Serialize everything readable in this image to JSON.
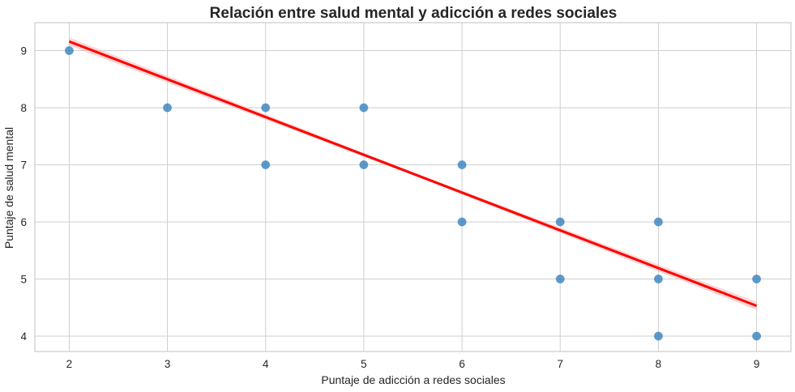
{
  "chart_data": {
    "type": "scatter",
    "title": "Relación entre salud mental y adicción a redes sociales",
    "xlabel": "Puntaje de adicción a redes sociales",
    "ylabel": "Puntaje de salud mental",
    "xlim": [
      1.65,
      9.35
    ],
    "ylim": [
      3.73,
      9.49
    ],
    "xticks": [
      2,
      3,
      4,
      5,
      6,
      7,
      8,
      9
    ],
    "yticks": [
      4,
      5,
      6,
      7,
      8,
      9
    ],
    "grid": true,
    "points": [
      {
        "x": 2,
        "y": 9
      },
      {
        "x": 3,
        "y": 8
      },
      {
        "x": 4,
        "y": 8
      },
      {
        "x": 4,
        "y": 7
      },
      {
        "x": 5,
        "y": 8
      },
      {
        "x": 5,
        "y": 7
      },
      {
        "x": 6,
        "y": 7
      },
      {
        "x": 6,
        "y": 6
      },
      {
        "x": 7,
        "y": 6
      },
      {
        "x": 7,
        "y": 5
      },
      {
        "x": 8,
        "y": 6
      },
      {
        "x": 8,
        "y": 5
      },
      {
        "x": 8,
        "y": 4
      },
      {
        "x": 9,
        "y": 5
      },
      {
        "x": 9,
        "y": 4
      }
    ],
    "regression_line": {
      "x": [
        2,
        9
      ],
      "y": [
        9.16,
        4.53
      ]
    },
    "colors": {
      "points": "#2a7ab9",
      "regression": "#ff0000",
      "band": "#ffb3b3",
      "grid": "#cfcfcf",
      "frame": "#cccccc"
    }
  }
}
